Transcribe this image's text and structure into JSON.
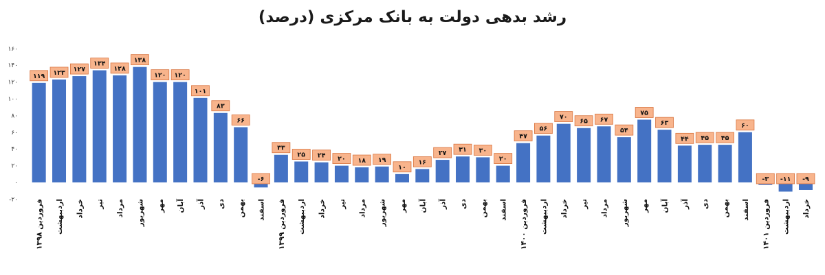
{
  "chart_data": {
    "type": "bar",
    "title": "رشد بدهی دولت به بانک مرکزی (درصد)",
    "xlabel": "",
    "ylabel": "",
    "ylim": [
      -20,
      160
    ],
    "yticks": [
      "-۲۰",
      "۰",
      "۲۰",
      "۴۰",
      "۶۰",
      "۸۰",
      "۱۰۰",
      "۱۲۰",
      "۱۴۰",
      "۱۶۰"
    ],
    "categories": [
      "فروردین ۱۳۹۸",
      "اردیبهشت",
      "خرداد",
      "تیر",
      "مرداد",
      "شهریور",
      "مهر",
      "آبان",
      "آذر",
      "دی",
      "بهمن",
      "اسفند",
      "فروردین ۱۳۹۹",
      "اردیبهشت",
      "خرداد",
      "تیر",
      "مرداد",
      "شهریور",
      "مهر",
      "آبان",
      "آذر",
      "دی",
      "بهمن",
      "اسفند",
      "فروردین ۱۴۰۰",
      "اردیبهشت",
      "خرداد",
      "تیر",
      "مرداد",
      "شهریور",
      "مهر",
      "آبان",
      "آذر",
      "دی",
      "بهمن",
      "اسفند",
      "فروردین ۱۴۰۱",
      "اردیبهشت",
      "خرداد"
    ],
    "values": [
      119,
      123,
      127,
      134,
      128,
      138,
      120,
      120,
      101,
      83,
      66,
      -6,
      33,
      25,
      24,
      20,
      18,
      19,
      10,
      16,
      27,
      31,
      30,
      20,
      47,
      56,
      70,
      65,
      67,
      54,
      75,
      63,
      44,
      45,
      45,
      60,
      -3,
      -11,
      -9
    ],
    "data_labels": [
      "۱۱۹",
      "۱۲۳",
      "۱۲۷",
      "۱۳۴",
      "۱۲۸",
      "۱۳۸",
      "۱۲۰",
      "۱۲۰",
      "۱۰۱",
      "۸۳",
      "۶۶",
      "-۶",
      "۳۳",
      "۲۵",
      "۲۴",
      "۲۰",
      "۱۸",
      "۱۹",
      "۱۰",
      "۱۶",
      "۲۷",
      "۳۱",
      "۳۰",
      "۲۰",
      "۴۷",
      "۵۶",
      "۷۰",
      "۶۵",
      "۶۷",
      "۵۴",
      "۷۵",
      "۶۳",
      "۴۴",
      "۴۵",
      "۴۵",
      "۶۰",
      "-۳",
      "-۱۱",
      "-۹"
    ],
    "grid": false,
    "legend": false,
    "colors": {
      "bar": "#4472C4",
      "label_fill": "#F8B48C",
      "label_border": "#D9743F"
    }
  }
}
